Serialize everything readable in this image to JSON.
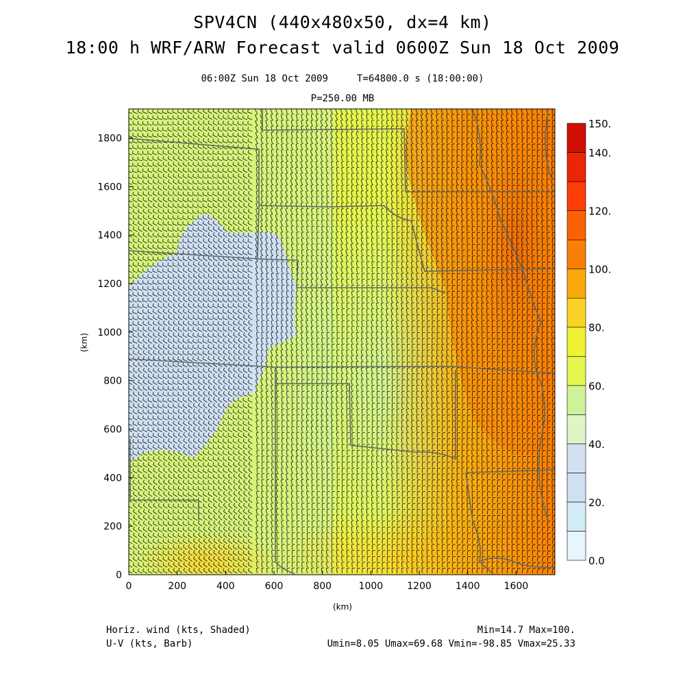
{
  "header": {
    "line1": "SPV4CN (440x480x50, dx=4 km)",
    "line2": "18:00 h WRF/ARW Forecast valid 0600Z Sun 18 Oct 2009",
    "time_info": "06:00Z Sun 18 Oct 2009     T=64800.0 s (18:00:00)",
    "level": "P=250.00 MB"
  },
  "footer": {
    "field_shaded": "Horiz. wind (kts, Shaded)",
    "field_barb": "U-V (kts, Barb)",
    "minmax": "Min=14.7 Max=100.",
    "uv_stats": "Umin=8.05 Umax=69.68 Vmin=-98.85 Vmax=25.33"
  },
  "map": {
    "x_axis_label": "(km)",
    "y_axis_label": "(km)",
    "x_range_km": [
      0,
      1760
    ],
    "y_range_km": [
      0,
      1920
    ],
    "x_ticks": [
      "0",
      "200",
      "400",
      "600",
      "800",
      "1000",
      "1200",
      "1400",
      "1600"
    ],
    "y_ticks": [
      "0",
      "200",
      "400",
      "600",
      "800",
      "1000",
      "1200",
      "1400",
      "1600",
      "1800"
    ],
    "barb_color": "#000000",
    "boundary_color": "#666666"
  },
  "colorbar": {
    "levels": [
      0,
      10,
      20,
      30,
      40,
      50,
      60,
      70,
      80,
      90,
      100,
      110,
      120,
      130,
      140,
      150
    ],
    "colors": [
      "#e6f6fc",
      "#d2ecf6",
      "#cfe0f3",
      "#d2e0f0",
      "#dff5c6",
      "#cdf29a",
      "#e4f64e",
      "#eef232",
      "#fdd226",
      "#f9a80c",
      "#f88006",
      "#fb6206",
      "#ff3d08",
      "#eb2604",
      "#cf1000",
      "#b20000"
    ],
    "labels": [
      "0.0",
      "20.",
      "40.",
      "60.",
      "80.",
      "100.",
      "120.",
      "140.",
      "150."
    ]
  }
}
